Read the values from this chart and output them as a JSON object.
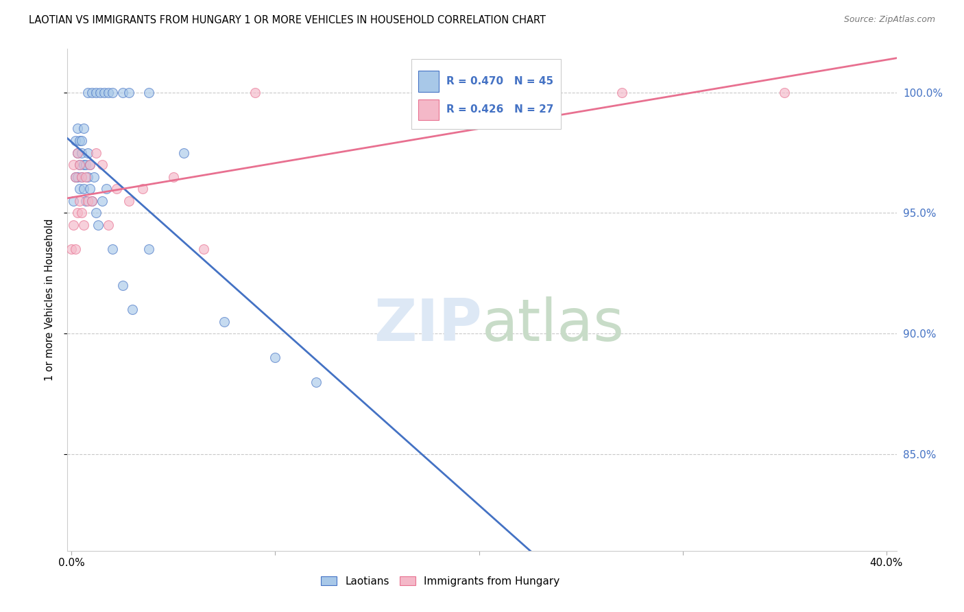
{
  "title": "LAOTIAN VS IMMIGRANTS FROM HUNGARY 1 OR MORE VEHICLES IN HOUSEHOLD CORRELATION CHART",
  "source": "Source: ZipAtlas.com",
  "ylabel": "1 or more Vehicles in Household",
  "legend_label1": "Laotians",
  "legend_label2": "Immigrants from Hungary",
  "r1": 0.47,
  "n1": 45,
  "r2": 0.426,
  "n2": 27,
  "color_blue": "#a8c8e8",
  "color_pink": "#f4b8c8",
  "color_blue_edge": "#4472c4",
  "color_pink_edge": "#e87090",
  "color_blue_line": "#4472c4",
  "color_pink_line": "#e87090",
  "color_blue_text": "#4472c4",
  "background_color": "#ffffff",
  "grid_color": "#bbbbbb",
  "xmin": -0.002,
  "xmax": 0.405,
  "ymin": 81.0,
  "ymax": 101.8,
  "yticks": [
    85.0,
    90.0,
    95.0,
    100.0
  ],
  "lao_x": [
    0.001,
    0.002,
    0.002,
    0.003,
    0.003,
    0.003,
    0.004,
    0.004,
    0.004,
    0.005,
    0.005,
    0.005,
    0.006,
    0.006,
    0.006,
    0.007,
    0.007,
    0.008,
    0.008,
    0.009,
    0.009,
    0.01,
    0.011,
    0.012,
    0.013,
    0.015,
    0.017,
    0.02,
    0.025,
    0.03,
    0.038,
    0.055,
    0.075,
    0.1,
    0.12,
    0.008,
    0.01,
    0.012,
    0.014,
    0.016,
    0.018,
    0.02,
    0.025,
    0.028,
    0.038
  ],
  "lao_y": [
    95.5,
    96.5,
    98.0,
    96.5,
    97.5,
    98.5,
    96.0,
    97.0,
    98.0,
    96.5,
    97.5,
    98.0,
    96.0,
    97.0,
    98.5,
    95.5,
    97.0,
    96.5,
    97.5,
    96.0,
    97.0,
    95.5,
    96.5,
    95.0,
    94.5,
    95.5,
    96.0,
    93.5,
    92.0,
    91.0,
    93.5,
    97.5,
    90.5,
    89.0,
    88.0,
    100.0,
    100.0,
    100.0,
    100.0,
    100.0,
    100.0,
    100.0,
    100.0,
    100.0,
    100.0
  ],
  "hun_x": [
    0.0,
    0.001,
    0.001,
    0.002,
    0.002,
    0.003,
    0.003,
    0.004,
    0.004,
    0.005,
    0.005,
    0.006,
    0.007,
    0.008,
    0.009,
    0.01,
    0.012,
    0.015,
    0.018,
    0.022,
    0.028,
    0.035,
    0.05,
    0.065,
    0.09,
    0.27,
    0.35
  ],
  "hun_y": [
    93.5,
    94.5,
    97.0,
    93.5,
    96.5,
    95.0,
    97.5,
    95.5,
    97.0,
    95.0,
    96.5,
    94.5,
    96.5,
    95.5,
    97.0,
    95.5,
    97.5,
    97.0,
    94.5,
    96.0,
    95.5,
    96.0,
    96.5,
    93.5,
    100.0,
    100.0,
    100.0
  ]
}
